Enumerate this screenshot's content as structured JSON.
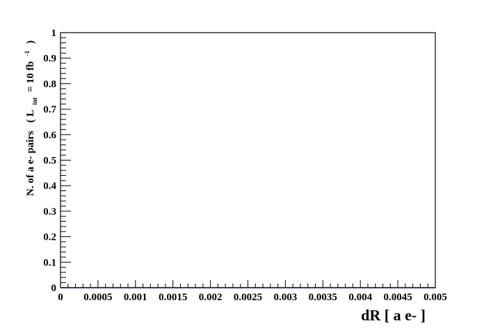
{
  "chart_data": {
    "type": "line",
    "title": "",
    "xlabel": "dR [ a e- ]",
    "ylabel": {
      "main": "N. of a e- pairs",
      "open": "( L",
      "sub": "int",
      "eq": "= 10 fb",
      "sup": "-1",
      "close": ")"
    },
    "xlim": [
      0,
      0.005
    ],
    "ylim": [
      0,
      1
    ],
    "x_ticks": [
      0,
      0.0005,
      0.001,
      0.0015,
      0.002,
      0.0025,
      0.003,
      0.0035,
      0.004,
      0.0045,
      0.005
    ],
    "x_tick_labels": [
      "0",
      "0.0005",
      "0.001",
      "0.0015",
      "0.002",
      "0.0025",
      "0.003",
      "0.0035",
      "0.004",
      "0.0045",
      "0.005"
    ],
    "y_ticks": [
      0,
      0.1,
      0.2,
      0.3,
      0.4,
      0.5,
      0.6,
      0.7,
      0.8,
      0.9,
      1
    ],
    "y_tick_labels": [
      "0",
      "0.1",
      "0.2",
      "0.3",
      "0.4",
      "0.5",
      "0.6",
      "0.7",
      "0.8",
      "0.9",
      "1"
    ],
    "grid": false,
    "series": [
      {
        "color": "#00007f",
        "x": [
          0,
          0.005
        ],
        "y": [
          0,
          0
        ]
      }
    ]
  }
}
